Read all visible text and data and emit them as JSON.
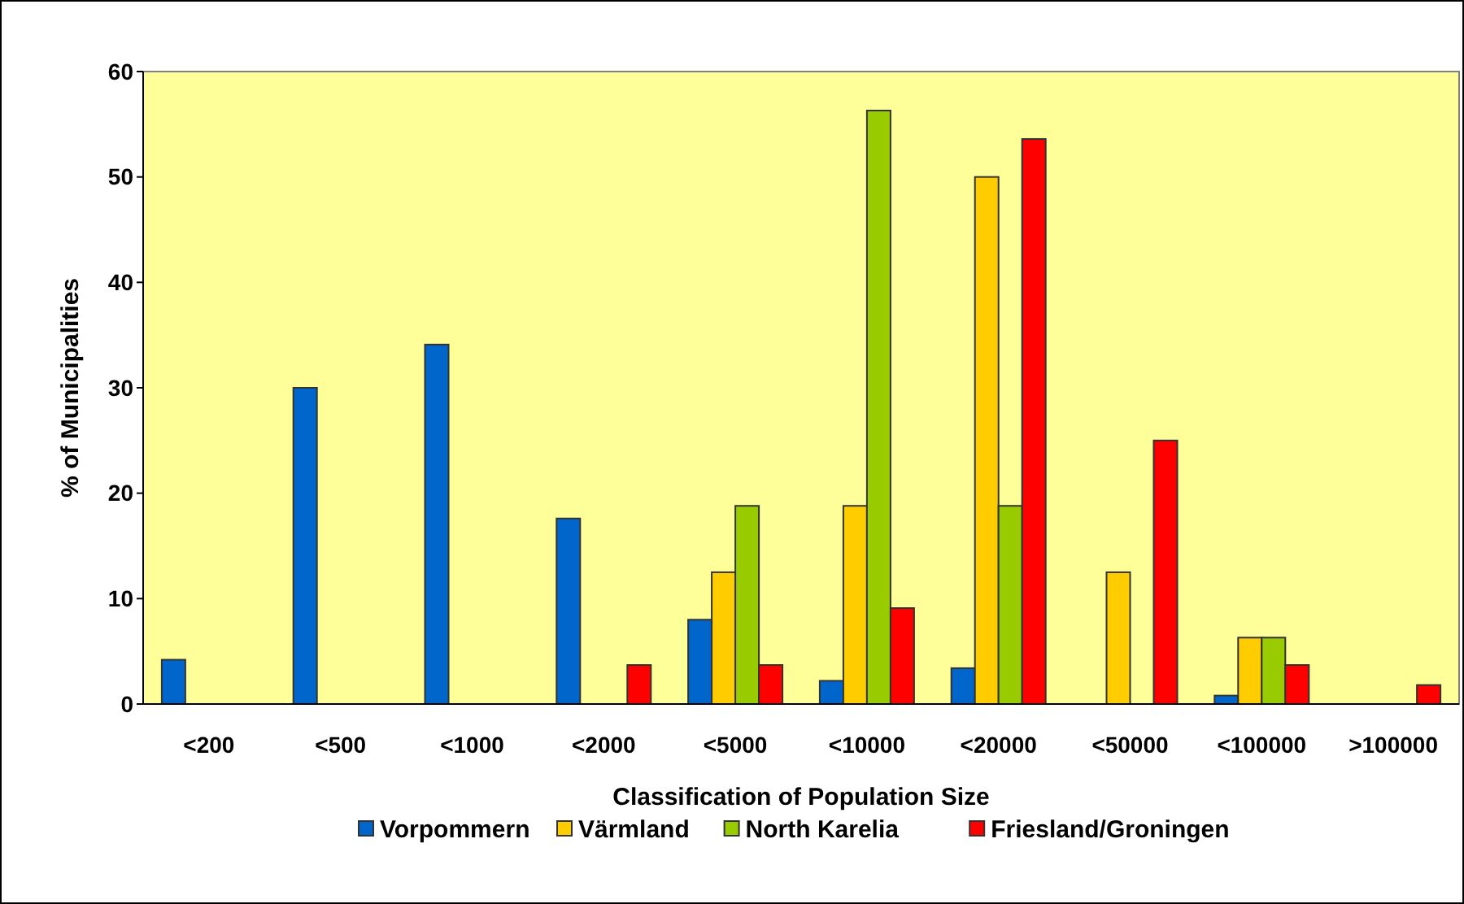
{
  "chart_data": {
    "type": "bar",
    "xlabel": "Classification of Population Size",
    "ylabel": "% of Municipalities",
    "categories": [
      "<200",
      "<500",
      "<1000",
      "<2000",
      "<5000",
      "<10000",
      "<20000",
      "<50000",
      "<100000",
      ">100000"
    ],
    "ylim": [
      0,
      60
    ],
    "yticks": [
      0,
      10,
      20,
      30,
      40,
      50,
      60
    ],
    "grid": false,
    "legend": "bottom",
    "series": [
      {
        "name": "Vorpommern",
        "color": "#0066cc",
        "values": [
          4.2,
          30,
          34.1,
          17.6,
          8,
          2.2,
          3.4,
          0,
          0.8,
          0
        ]
      },
      {
        "name": "Värmland",
        "color": "#ffcc00",
        "values": [
          0,
          0,
          0,
          0,
          12.5,
          18.8,
          50,
          12.5,
          6.3,
          0
        ]
      },
      {
        "name": "North Karelia",
        "color": "#99cc00",
        "values": [
          0,
          0,
          0,
          0,
          18.8,
          56.3,
          18.8,
          0,
          6.3,
          0
        ]
      },
      {
        "name": "Friesland/Groningen",
        "color": "#ff0000",
        "values": [
          0,
          0,
          0,
          3.7,
          3.7,
          9.1,
          53.6,
          25,
          3.7,
          1.8
        ]
      }
    ]
  }
}
